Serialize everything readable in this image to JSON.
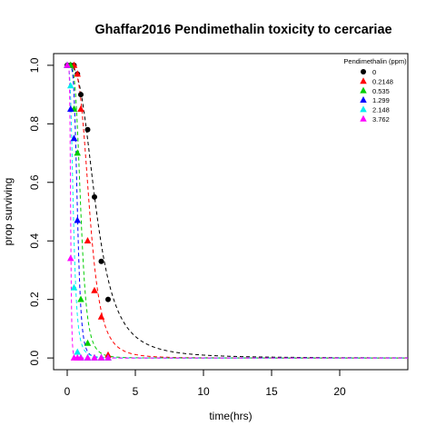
{
  "chart_data": {
    "type": "scatter",
    "title": "Ghaffar2016 Pendimethalin toxicity to cercariae",
    "xlabel": "time(hrs)",
    "ylabel": "prop surviving",
    "xlim": [
      -1,
      25
    ],
    "ylim": [
      -0.04,
      1.04
    ],
    "xticks": [
      0,
      5,
      10,
      15,
      20
    ],
    "yticks": [
      0.0,
      0.2,
      0.4,
      0.6,
      0.8,
      1.0
    ],
    "xtick_labels": [
      "0",
      "5",
      "10",
      "15",
      "20"
    ],
    "ytick_labels": [
      "0.0",
      "0.2",
      "0.4",
      "0.6",
      "0.8",
      "1.0"
    ],
    "grid": false,
    "legend": {
      "title": "Pendimethalin (ppm)",
      "placement": "top-right"
    },
    "series": [
      {
        "name": "0",
        "color": "#000000",
        "marker": "circle",
        "fit": {
          "m": 2.15,
          "k": 3.0
        },
        "points": [
          {
            "x": 0,
            "y": 1.0
          },
          {
            "x": 0.25,
            "y": 1.0
          },
          {
            "x": 0.5,
            "y": 1.0
          },
          {
            "x": 0.75,
            "y": 0.97
          },
          {
            "x": 1.0,
            "y": 0.9
          },
          {
            "x": 1.5,
            "y": 0.78
          },
          {
            "x": 2.0,
            "y": 0.55
          },
          {
            "x": 2.5,
            "y": 0.33
          },
          {
            "x": 3.0,
            "y": 0.2
          }
        ]
      },
      {
        "name": "0.2148",
        "color": "#ff0000",
        "marker": "triangle",
        "fit": {
          "m": 1.65,
          "k": 4.0
        },
        "points": [
          {
            "x": 0,
            "y": 1.0
          },
          {
            "x": 0.25,
            "y": 1.0
          },
          {
            "x": 0.5,
            "y": 1.0
          },
          {
            "x": 0.75,
            "y": 0.97
          },
          {
            "x": 1.0,
            "y": 0.85
          },
          {
            "x": 1.5,
            "y": 0.4
          },
          {
            "x": 2.0,
            "y": 0.23
          },
          {
            "x": 2.5,
            "y": 0.14
          },
          {
            "x": 3.0,
            "y": 0.01
          }
        ]
      },
      {
        "name": "0.535",
        "color": "#00cd00",
        "marker": "triangle",
        "fit": {
          "m": 1.0,
          "k": 4.5
        },
        "points": [
          {
            "x": 0,
            "y": 1.0
          },
          {
            "x": 0.25,
            "y": 1.0
          },
          {
            "x": 0.5,
            "y": 0.85
          },
          {
            "x": 0.75,
            "y": 0.7
          },
          {
            "x": 1.0,
            "y": 0.2
          },
          {
            "x": 1.5,
            "y": 0.05
          },
          {
            "x": 2.0,
            "y": 0.0
          },
          {
            "x": 2.5,
            "y": 0.0
          },
          {
            "x": 3.0,
            "y": 0.0
          }
        ]
      },
      {
        "name": "1.299",
        "color": "#0000ff",
        "marker": "triangle",
        "fit": {
          "m": 0.75,
          "k": 5.5
        },
        "points": [
          {
            "x": 0,
            "y": 1.0
          },
          {
            "x": 0.25,
            "y": 0.85
          },
          {
            "x": 0.5,
            "y": 0.75
          },
          {
            "x": 0.75,
            "y": 0.47
          },
          {
            "x": 1.0,
            "y": 0.0
          },
          {
            "x": 1.5,
            "y": 0.0
          },
          {
            "x": 2.0,
            "y": 0.0
          },
          {
            "x": 2.5,
            "y": 0.0
          },
          {
            "x": 3.0,
            "y": 0.0
          }
        ]
      },
      {
        "name": "2.148",
        "color": "#00eeee",
        "marker": "triangle",
        "fit": {
          "m": 0.45,
          "k": 3.5
        },
        "points": [
          {
            "x": 0,
            "y": 1.0
          },
          {
            "x": 0.25,
            "y": 0.93
          },
          {
            "x": 0.5,
            "y": 0.24
          },
          {
            "x": 0.75,
            "y": 0.02
          },
          {
            "x": 1.0,
            "y": 0.0
          },
          {
            "x": 1.5,
            "y": 0.0
          },
          {
            "x": 2.0,
            "y": 0.0
          },
          {
            "x": 2.5,
            "y": 0.0
          },
          {
            "x": 3.0,
            "y": 0.0
          }
        ]
      },
      {
        "name": "3.762",
        "color": "#ff00ff",
        "marker": "triangle",
        "fit": {
          "m": 0.25,
          "k": 7.0
        },
        "points": [
          {
            "x": 0,
            "y": 1.0
          },
          {
            "x": 0.25,
            "y": 0.34
          },
          {
            "x": 0.5,
            "y": 0.0
          },
          {
            "x": 0.75,
            "y": 0.0
          },
          {
            "x": 1.0,
            "y": 0.0
          },
          {
            "x": 1.5,
            "y": 0.0
          },
          {
            "x": 2.0,
            "y": 0.0
          },
          {
            "x": 2.5,
            "y": 0.0
          },
          {
            "x": 3.0,
            "y": 0.0
          }
        ]
      }
    ]
  }
}
